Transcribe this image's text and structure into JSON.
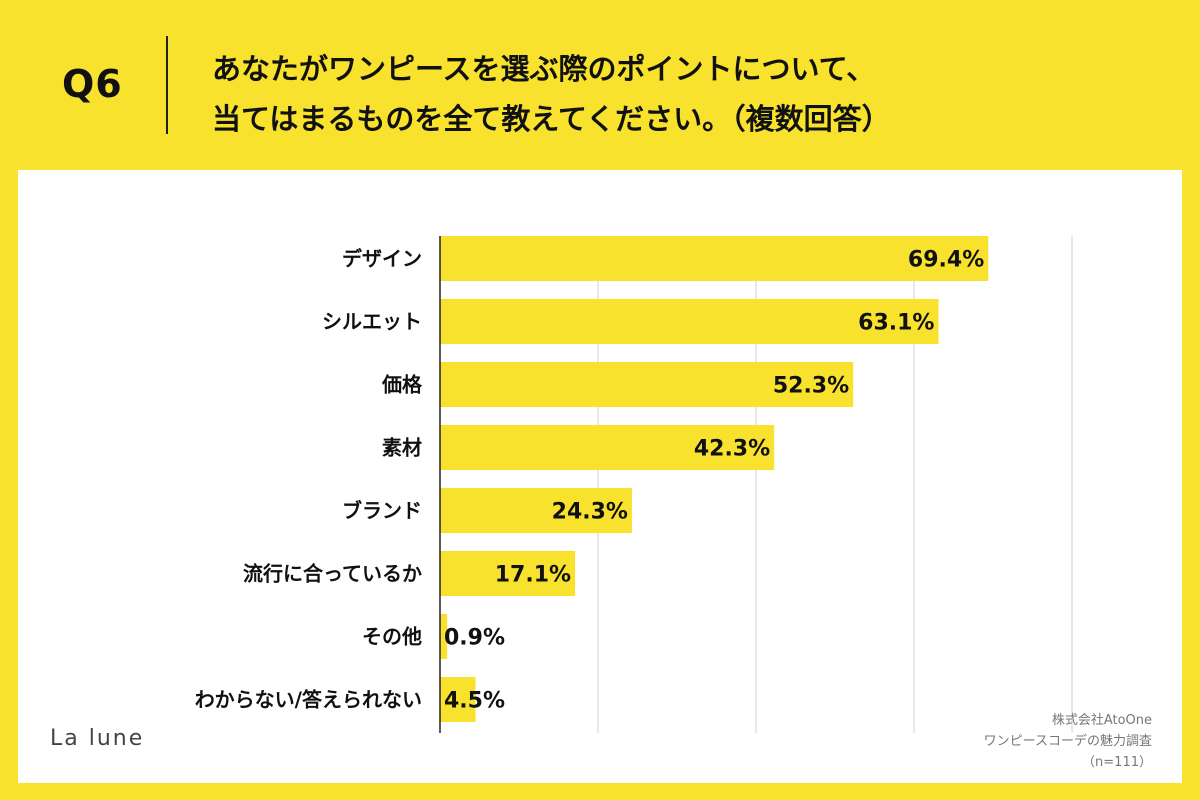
{
  "header": {
    "q_number": "Q6",
    "question_line1": "あなたがワンピースを選ぶ際のポイントについて、",
    "question_line2": "当てはまるものを全て教えてください。（複数回答）"
  },
  "chart_data": {
    "type": "bar",
    "orientation": "horizontal",
    "categories": [
      "デザイン",
      "シルエット",
      "価格",
      "素材",
      "ブランド",
      "流行に合っているか",
      "その他",
      "わからない/答えられない"
    ],
    "values": [
      69.4,
      63.1,
      52.3,
      42.3,
      24.3,
      17.1,
      0.9,
      4.5
    ],
    "value_labels": [
      "69.4%",
      "63.1%",
      "52.3%",
      "42.3%",
      "24.3%",
      "17.1%",
      "0.9%",
      "4.5%"
    ],
    "xlim": [
      0,
      80
    ],
    "grid": true,
    "bar_color": "#f8e22e"
  },
  "footer": {
    "logo": "La lune",
    "source_line1": "株式会社AtoOne",
    "source_line2": "ワンピースコーデの魅力調査",
    "source_line3": "（n=111）"
  }
}
